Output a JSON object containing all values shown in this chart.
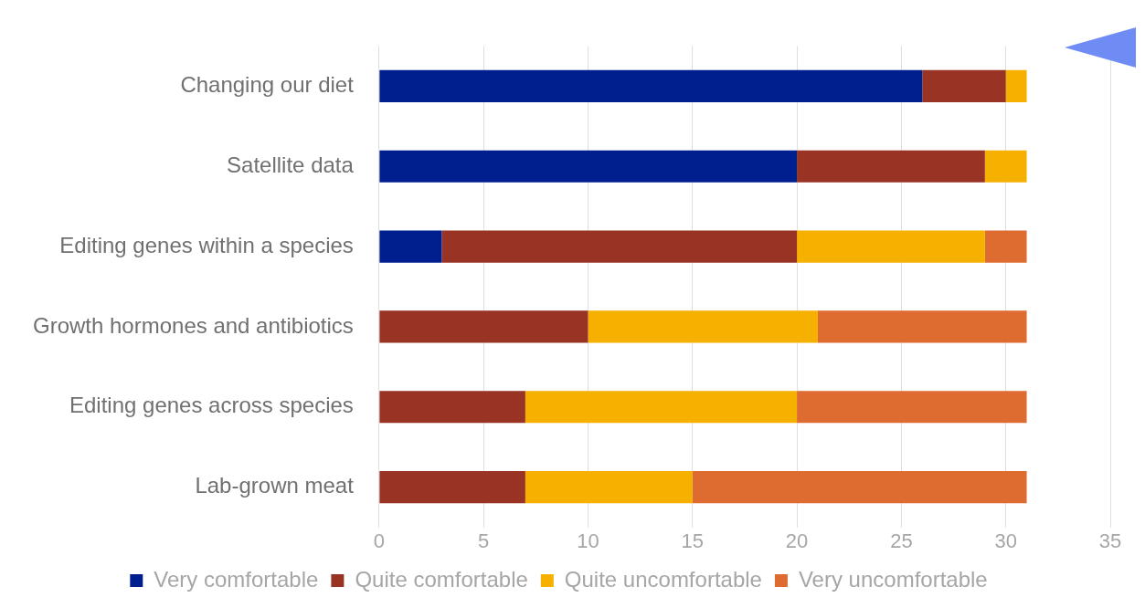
{
  "chart_data": {
    "type": "bar",
    "orientation": "horizontal",
    "stacked": true,
    "categories": [
      "Changing our diet",
      "Satellite data",
      "Editing genes within a species",
      "Growth hormones and antibiotics",
      "Editing genes across species",
      "Lab-grown meat"
    ],
    "series": [
      {
        "name": "Very comfortable",
        "color": "#001f8f",
        "values": [
          26,
          20,
          3,
          0,
          0,
          0
        ]
      },
      {
        "name": "Quite comfortable",
        "color": "#993324",
        "values": [
          4,
          9,
          17,
          10,
          7,
          7
        ]
      },
      {
        "name": "Quite uncomfortable",
        "color": "#f5b000",
        "values": [
          1,
          2,
          9,
          11,
          13,
          8
        ]
      },
      {
        "name": "Very uncomfortable",
        "color": "#de6b30",
        "values": [
          0,
          0,
          2,
          10,
          11,
          16
        ]
      }
    ],
    "xlim": [
      0,
      35
    ],
    "xticks": [
      0,
      5,
      10,
      15,
      20,
      25,
      30,
      35
    ],
    "grid": "x",
    "legend": "bottom"
  }
}
